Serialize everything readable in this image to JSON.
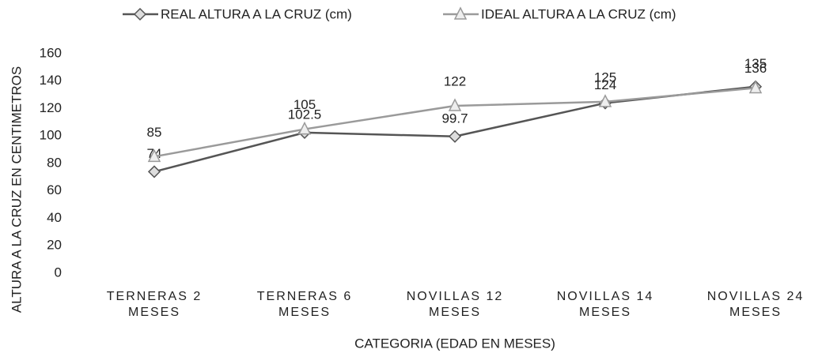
{
  "chart_data": {
    "type": "line",
    "x_label": "CATEGORIA (EDAD EN MESES)",
    "y_label": "ALTURA A LA CRUZ EN CENTIMETROS",
    "categories": [
      "TERNERAS  2 MESES",
      "TERNERAS 6 MESES",
      "NOVILLAS 12 MESES",
      "NOVILLAS 14 MESES",
      "NOVILLAS 24 MESES"
    ],
    "series": [
      {
        "name": "REAL ALTURA A LA CRUZ (cm)",
        "color": "#555555",
        "marker": "diamond",
        "values": [
          74,
          102.5,
          99.7,
          124,
          136
        ]
      },
      {
        "name": "IDEAL ALTURA A LA CRUZ (cm)",
        "color": "#9a9a9a",
        "marker": "triangle",
        "values": [
          85,
          105,
          122,
          125,
          135
        ]
      }
    ],
    "ylim": [
      0,
      160
    ],
    "yticks": [
      0,
      20,
      40,
      60,
      80,
      100,
      120,
      140,
      160
    ],
    "grid": false,
    "legend": "top"
  }
}
